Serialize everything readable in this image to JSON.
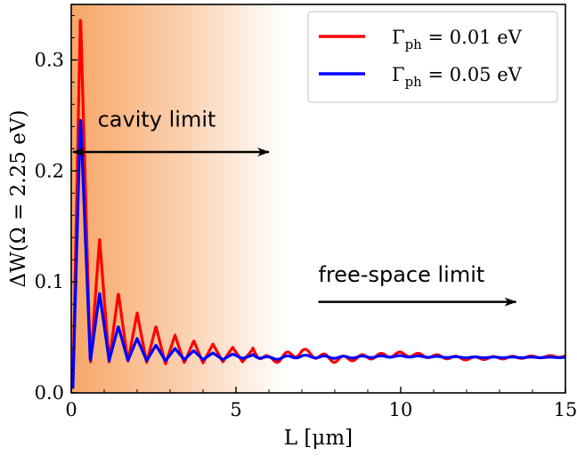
{
  "chart_data": {
    "type": "line",
    "title": "",
    "xlabel": "L [μm]",
    "ylabel": "ΔW(Ω = 2.25 eV)",
    "xlim": [
      0,
      15
    ],
    "ylim": [
      0,
      0.35
    ],
    "xticks": [
      0,
      5,
      10,
      15
    ],
    "xtick_labels": [
      "0",
      "5",
      "10",
      "15"
    ],
    "yticks": [
      0.0,
      0.1,
      0.2,
      0.3
    ],
    "ytick_labels": [
      "0.0",
      "0.1",
      "0.2",
      "0.3"
    ],
    "grid": false,
    "legend_position": "top-right",
    "background_gradient": {
      "from_x": 0,
      "to_x": 6.5,
      "color": "#f7a668"
    },
    "series": [
      {
        "name": "Γph = 0.01 eV",
        "label_main": "Γ",
        "label_sub": "ph",
        "label_rest": " = 0.01 eV",
        "color": "#ff0000",
        "x": [
          0.05,
          0.28,
          0.58,
          0.86,
          1.15,
          1.43,
          1.72,
          2.0,
          2.29,
          2.57,
          2.86,
          3.15,
          3.43,
          3.72,
          4.0,
          4.3,
          4.6,
          4.9,
          5.2,
          5.5,
          6.0,
          7.0,
          8.0,
          10.0,
          12.0,
          15.0
        ],
        "y": [
          0.005,
          0.343,
          0.025,
          0.139,
          0.028,
          0.09,
          0.028,
          0.072,
          0.027,
          0.06,
          0.026,
          0.052,
          0.027,
          0.047,
          0.027,
          0.044,
          0.028,
          0.041,
          0.028,
          0.039,
          0.029,
          0.037,
          0.03,
          0.035,
          0.031,
          0.033
        ]
      },
      {
        "name": "Γph = 0.05 eV",
        "label_main": "Γ",
        "label_sub": "ph",
        "label_rest": " = 0.05 eV",
        "color": "#0000ff",
        "x": [
          0.05,
          0.28,
          0.58,
          0.86,
          1.15,
          1.43,
          1.72,
          2.0,
          2.29,
          2.57,
          2.86,
          3.15,
          3.43,
          3.72,
          4.0,
          4.3,
          4.6,
          4.9,
          5.2,
          5.5,
          6.0,
          7.0,
          8.0,
          10.0,
          12.0,
          15.0
        ],
        "y": [
          0.005,
          0.251,
          0.028,
          0.09,
          0.029,
          0.06,
          0.029,
          0.049,
          0.029,
          0.043,
          0.029,
          0.04,
          0.03,
          0.038,
          0.03,
          0.036,
          0.03,
          0.035,
          0.031,
          0.034,
          0.031,
          0.033,
          0.032,
          0.033,
          0.032,
          0.032
        ]
      }
    ],
    "annotations": [
      {
        "text": "cavity limit",
        "text_x": 0.8,
        "text_y": 0.24,
        "arrow_from_x": 0.0,
        "arrow_to_x": 6.0,
        "arrow_y": 0.217,
        "style": "double-headed"
      },
      {
        "text": "free-space limit",
        "text_x": 7.5,
        "text_y": 0.1,
        "arrow_from_x": 7.5,
        "arrow_to_x": 13.5,
        "arrow_y": 0.082,
        "style": "single-headed"
      }
    ]
  }
}
